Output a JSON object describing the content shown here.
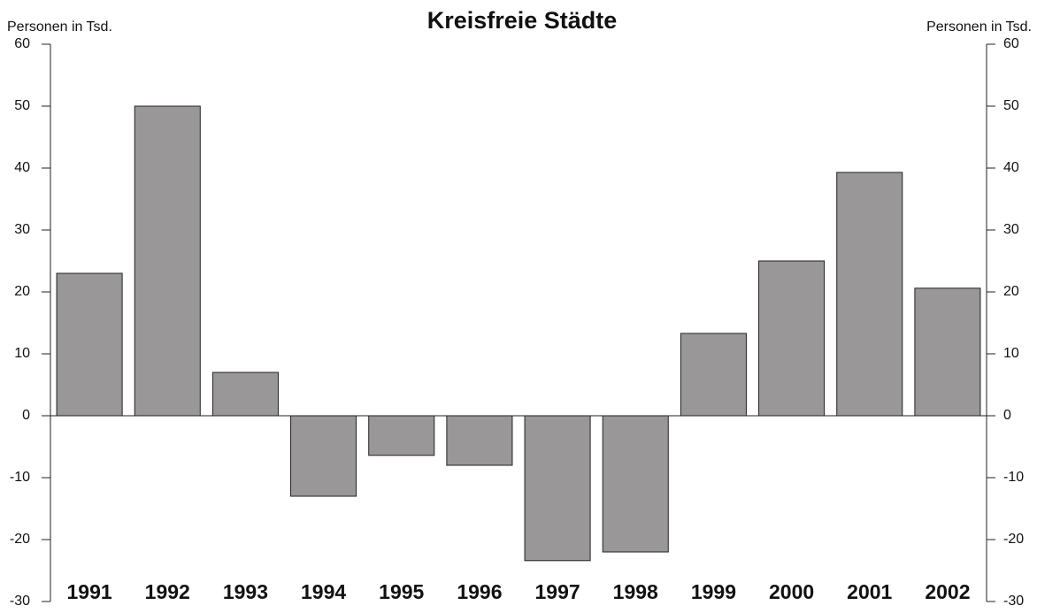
{
  "chart_data": {
    "type": "bar",
    "title": "Kreisfreie Städte",
    "y_label": "Personen in Tsd.",
    "y2_label": "Personen in Tsd.",
    "categories": [
      "1991",
      "1992",
      "1993",
      "1994",
      "1995",
      "1996",
      "1997",
      "1998",
      "1999",
      "2000",
      "2001",
      "2002"
    ],
    "values": [
      23,
      50,
      7,
      -13,
      -6.4,
      -8,
      -23.4,
      -22,
      13.3,
      25,
      39.3,
      20.6
    ],
    "color": "#999797",
    "ylim": [
      -30,
      60
    ],
    "yticks": [
      -30,
      -20,
      -10,
      0,
      10,
      20,
      30,
      40,
      50,
      60
    ],
    "y2lim": [
      -30,
      60
    ],
    "y2ticks": [
      -30,
      -20,
      -10,
      0,
      10,
      20,
      30,
      40,
      50,
      60
    ]
  }
}
